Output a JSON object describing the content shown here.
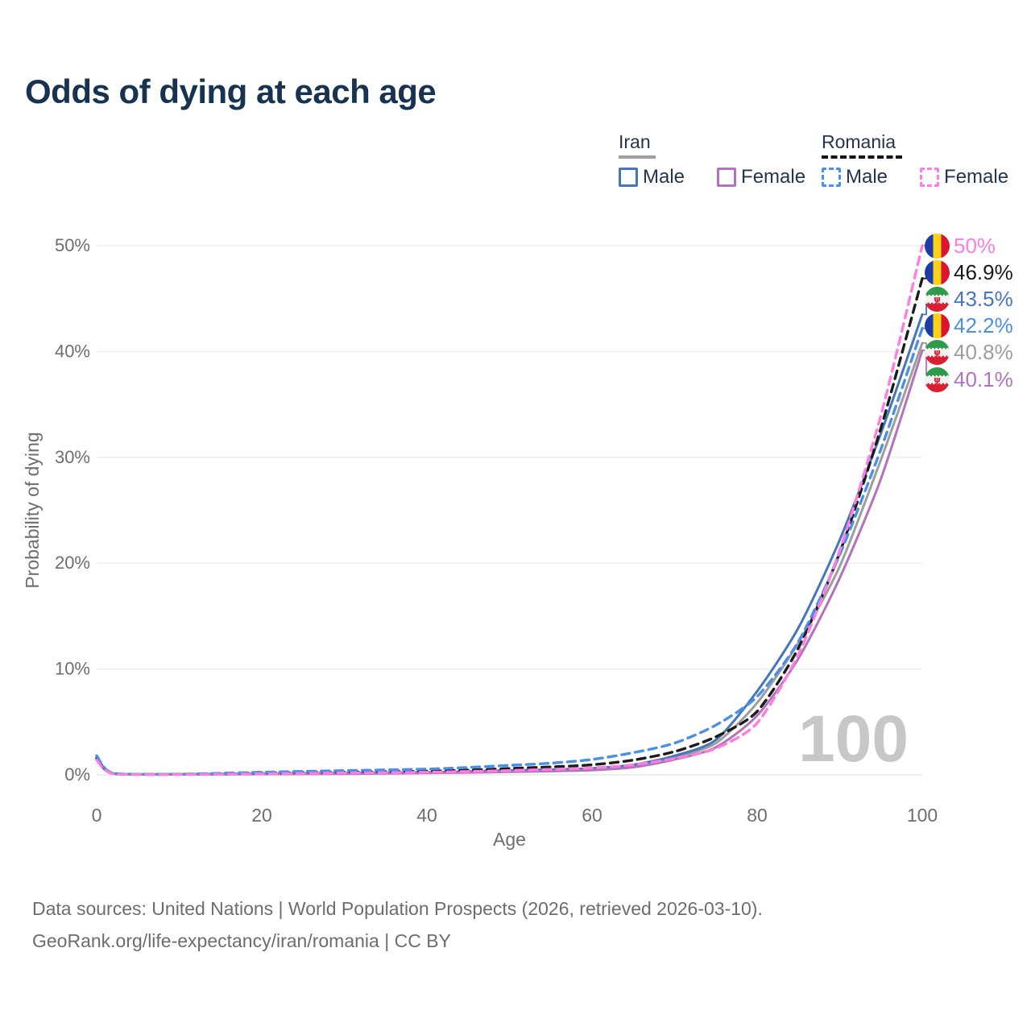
{
  "title": "Odds of dying at each age",
  "colors": {
    "title_text": "#17334f",
    "legend_text": "#25344f",
    "axis_text": "#6e6e6e",
    "grid": "#ebebeb",
    "baseline": "#e0e0e0",
    "watermark": "#c7c7c7",
    "footer_text": "#6d6d6d"
  },
  "legend": {
    "groups": [
      {
        "name": "Iran",
        "line_style": "solid",
        "line_color": "#9e9e9e",
        "items": [
          {
            "label": "Male",
            "color": "#4576bd",
            "dash": false
          },
          {
            "label": "Female",
            "color": "#b273bd",
            "dash": false
          }
        ]
      },
      {
        "name": "Romania",
        "line_style": "dashed",
        "line_color": "#141414",
        "items": [
          {
            "label": "Male",
            "color": "#4a90e8",
            "dash": true
          },
          {
            "label": "Female",
            "color": "#ff7ce0",
            "dash": true
          }
        ]
      }
    ]
  },
  "chart_data": {
    "type": "line",
    "title": "Odds of dying at each age",
    "xlabel": "Age",
    "ylabel": "Probability of dying",
    "xlim": [
      0,
      100
    ],
    "ylim": [
      0,
      50
    ],
    "grid": true,
    "watermark": "100",
    "xticks": [
      {
        "v": 0,
        "label": "0"
      },
      {
        "v": 20,
        "label": "20"
      },
      {
        "v": 40,
        "label": "40"
      },
      {
        "v": 60,
        "label": "60"
      },
      {
        "v": 80,
        "label": "80"
      },
      {
        "v": 100,
        "label": "100"
      }
    ],
    "yticks": [
      {
        "v": 0,
        "label": "0%"
      },
      {
        "v": 10,
        "label": "10%"
      },
      {
        "v": 20,
        "label": "20%"
      },
      {
        "v": 30,
        "label": "30%"
      },
      {
        "v": 40,
        "label": "40%"
      },
      {
        "v": 50,
        "label": "50%"
      }
    ],
    "x": [
      0,
      2,
      10,
      20,
      30,
      40,
      45,
      50,
      55,
      60,
      65,
      70,
      75,
      80,
      85,
      90,
      95,
      100
    ],
    "series": [
      {
        "id": "iran-all",
        "name": "Iran",
        "country": "iran",
        "sex": "all",
        "color": "#9e9e9e",
        "dash": false,
        "values": [
          1.55,
          0.13,
          0.05,
          0.1,
          0.15,
          0.22,
          0.28,
          0.36,
          0.44,
          0.55,
          0.85,
          1.65,
          3.0,
          6.8,
          12.5,
          19.7,
          29.8,
          40.8
        ]
      },
      {
        "id": "iran-male",
        "name": "Iran Male",
        "country": "iran",
        "sex": "male",
        "color": "#4576bd",
        "dash": false,
        "values": [
          1.7,
          0.14,
          0.06,
          0.12,
          0.18,
          0.25,
          0.33,
          0.42,
          0.5,
          0.62,
          0.95,
          1.8,
          3.3,
          7.9,
          13.9,
          22.2,
          32.3,
          43.5
        ]
      },
      {
        "id": "iran-female",
        "name": "Iran Female",
        "country": "iran",
        "sex": "female",
        "color": "#b273bd",
        "dash": false,
        "values": [
          1.4,
          0.11,
          0.04,
          0.07,
          0.1,
          0.18,
          0.22,
          0.28,
          0.35,
          0.45,
          0.72,
          1.45,
          2.6,
          5.6,
          11.0,
          18.6,
          28.0,
          40.1
        ]
      },
      {
        "id": "romania-all",
        "name": "Romania",
        "country": "romania",
        "sex": "all",
        "color": "#1c1c1c",
        "dash": true,
        "values": [
          1.55,
          0.13,
          0.05,
          0.15,
          0.25,
          0.35,
          0.45,
          0.6,
          0.75,
          0.95,
          1.4,
          2.2,
          3.6,
          6.0,
          12.0,
          21.0,
          32.8,
          46.9
        ]
      },
      {
        "id": "romania-male",
        "name": "Romania Male",
        "country": "romania",
        "sex": "male",
        "color": "#4a90e8",
        "dash": true,
        "values": [
          1.8,
          0.16,
          0.07,
          0.25,
          0.4,
          0.55,
          0.7,
          0.9,
          1.1,
          1.45,
          2.1,
          3.0,
          4.7,
          7.4,
          12.6,
          20.8,
          30.8,
          42.2
        ]
      },
      {
        "id": "romania-female",
        "name": "Romania Female",
        "country": "romania",
        "sex": "female",
        "color": "#ff7ce0",
        "dash": true,
        "values": [
          1.4,
          0.11,
          0.04,
          0.1,
          0.18,
          0.25,
          0.32,
          0.4,
          0.52,
          0.65,
          0.95,
          1.55,
          2.5,
          4.9,
          11.4,
          21.2,
          34.0,
          50.0
        ]
      }
    ],
    "end_labels": [
      {
        "series": "romania-female",
        "flag": "romania",
        "text": "50%",
        "value": 50.0,
        "color": "#ff7ce0"
      },
      {
        "series": "romania-all",
        "flag": "romania",
        "text": "46.9%",
        "value": 46.9,
        "color": "#1a1a1a"
      },
      {
        "series": "iran-male",
        "flag": "iran",
        "text": "43.5%",
        "value": 43.5,
        "color": "#4576bd"
      },
      {
        "series": "romania-male",
        "flag": "romania",
        "text": "42.2%",
        "value": 42.2,
        "color": "#4a90e8"
      },
      {
        "series": "iran-all",
        "flag": "iran",
        "text": "40.8%",
        "value": 40.8,
        "color": "#9e9e9e"
      },
      {
        "series": "iran-female",
        "flag": "iran",
        "text": "40.1%",
        "value": 40.1,
        "color": "#b273bd"
      }
    ]
  },
  "footer": {
    "line1": "Data sources: United Nations | World Population Prospects (2026, retrieved 2026-03-10).",
    "line2": "GeoRank.org/life-expectancy/iran/romania | CC BY"
  }
}
